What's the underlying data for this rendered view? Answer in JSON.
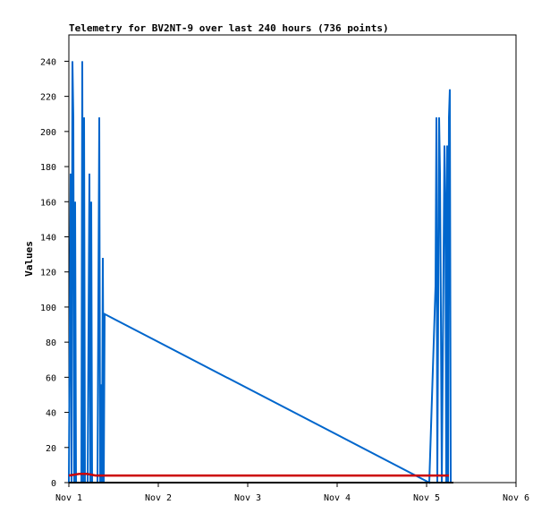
{
  "chart_data": {
    "type": "line",
    "title": "Telemetry for BV2NT-9 over last 240 hours (736 points)",
    "xlabel": "",
    "ylabel": "Values",
    "xlim": [
      0,
      5
    ],
    "ylim": [
      0,
      255
    ],
    "x_ticks": [
      {
        "value": 0,
        "label": "Nov 1"
      },
      {
        "value": 1,
        "label": "Nov 2"
      },
      {
        "value": 2,
        "label": "Nov 3"
      },
      {
        "value": 3,
        "label": "Nov 4"
      },
      {
        "value": 4,
        "label": "Nov 5"
      },
      {
        "value": 5,
        "label": "Nov 6"
      }
    ],
    "y_ticks": [
      0,
      20,
      40,
      60,
      80,
      100,
      120,
      140,
      160,
      180,
      200,
      220,
      240
    ],
    "grid": false,
    "series": [
      {
        "color": "#0066cc",
        "points": [
          [
            0.0,
            0
          ],
          [
            0.02,
            176
          ],
          [
            0.03,
            0
          ],
          [
            0.04,
            240
          ],
          [
            0.05,
            208
          ],
          [
            0.06,
            0
          ],
          [
            0.07,
            160
          ],
          [
            0.08,
            0
          ],
          [
            0.1,
            0
          ],
          [
            0.12,
            0
          ],
          [
            0.14,
            0
          ],
          [
            0.15,
            240
          ],
          [
            0.16,
            0
          ],
          [
            0.17,
            208
          ],
          [
            0.18,
            0
          ],
          [
            0.19,
            0
          ],
          [
            0.2,
            0
          ],
          [
            0.21,
            0
          ],
          [
            0.23,
            176
          ],
          [
            0.24,
            0
          ],
          [
            0.25,
            160
          ],
          [
            0.255,
            80
          ],
          [
            0.26,
            0
          ],
          [
            0.28,
            0
          ],
          [
            0.3,
            0
          ],
          [
            0.32,
            0
          ],
          [
            0.34,
            208
          ],
          [
            0.35,
            0
          ],
          [
            0.36,
            56
          ],
          [
            0.37,
            0
          ],
          [
            0.38,
            128
          ],
          [
            0.39,
            0
          ],
          [
            0.4,
            96
          ],
          [
            4.03,
            0
          ],
          [
            4.1,
            112
          ],
          [
            4.11,
            208
          ],
          [
            4.12,
            0
          ],
          [
            4.14,
            208
          ],
          [
            4.15,
            176
          ],
          [
            4.16,
            96
          ],
          [
            4.17,
            0
          ],
          [
            4.2,
            192
          ],
          [
            4.21,
            160
          ],
          [
            4.22,
            0
          ],
          [
            4.23,
            192
          ],
          [
            4.24,
            0
          ],
          [
            4.25,
            208
          ],
          [
            4.26,
            224
          ],
          [
            4.27,
            0
          ]
        ]
      },
      {
        "color": "#cc0000",
        "points": [
          [
            0.0,
            4
          ],
          [
            0.12,
            5
          ],
          [
            0.2,
            5
          ],
          [
            0.3,
            4
          ],
          [
            0.45,
            4
          ],
          [
            1.0,
            4
          ],
          [
            2.0,
            4
          ],
          [
            3.0,
            4
          ],
          [
            4.0,
            4
          ],
          [
            4.25,
            4
          ]
        ]
      },
      {
        "color": "#000000",
        "points": [
          [
            0.0,
            0
          ],
          [
            4.3,
            0
          ]
        ]
      }
    ]
  }
}
